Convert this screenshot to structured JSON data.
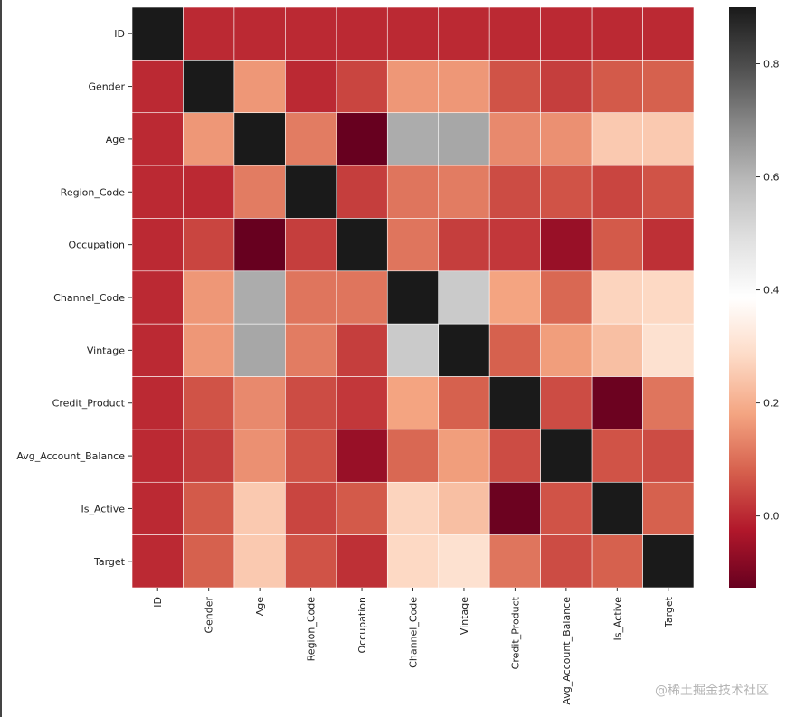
{
  "chart_data": {
    "type": "heatmap",
    "labels": [
      "ID",
      "Gender",
      "Age",
      "Region_Code",
      "Occupation",
      "Channel_Code",
      "Vintage",
      "Credit_Product",
      "Avg_Account_Balance",
      "Is_Active",
      "Target"
    ],
    "matrix": [
      [
        1.0,
        0.0,
        0.0,
        0.0,
        0.0,
        0.0,
        0.0,
        0.0,
        0.0,
        0.0,
        0.0
      ],
      [
        0.0,
        1.0,
        0.16,
        0.0,
        0.04,
        0.16,
        0.16,
        0.06,
        0.03,
        0.07,
        0.08
      ],
      [
        0.0,
        0.16,
        1.0,
        0.12,
        -0.13,
        0.62,
        0.63,
        0.14,
        0.15,
        0.25,
        0.25
      ],
      [
        0.0,
        0.0,
        0.12,
        1.0,
        0.03,
        0.11,
        0.12,
        0.05,
        0.06,
        0.04,
        0.06
      ],
      [
        0.0,
        0.04,
        -0.13,
        0.03,
        1.0,
        0.11,
        0.03,
        0.02,
        -0.06,
        0.07,
        0.01
      ],
      [
        0.0,
        0.16,
        0.62,
        0.11,
        0.11,
        1.0,
        0.55,
        0.18,
        0.09,
        0.27,
        0.28
      ],
      [
        0.0,
        0.16,
        0.63,
        0.12,
        0.03,
        0.55,
        1.0,
        0.08,
        0.17,
        0.23,
        0.3
      ],
      [
        0.0,
        0.06,
        0.14,
        0.05,
        0.02,
        0.18,
        0.08,
        1.0,
        0.05,
        -0.12,
        0.11
      ],
      [
        0.0,
        0.03,
        0.15,
        0.06,
        -0.06,
        0.09,
        0.17,
        0.05,
        1.0,
        0.06,
        0.05
      ],
      [
        0.0,
        0.07,
        0.25,
        0.04,
        0.07,
        0.27,
        0.23,
        -0.12,
        0.06,
        1.0,
        0.08
      ],
      [
        0.0,
        0.08,
        0.25,
        0.06,
        0.01,
        0.28,
        0.3,
        0.11,
        0.05,
        0.08,
        1.0
      ]
    ],
    "colormap": "RdGy_r",
    "colors": [
      "#67001f",
      "#b2182b",
      "#d6604d",
      "#f4a582",
      "#fddbc7",
      "#ffffff",
      "#e0e0e0",
      "#bababa",
      "#878787",
      "#4d4d4d",
      "#1a1a1a"
    ],
    "vmin": -0.127,
    "vmax": 0.9,
    "colorbar_ticks": [
      0.0,
      0.2,
      0.4,
      0.6,
      0.8
    ],
    "colorbar_tick_labels": [
      "0.0",
      "0.2",
      "0.4",
      "0.6",
      "0.8"
    ],
    "grid_lines_color": "#ffffff"
  },
  "watermark": "@稀土掘金技术社区"
}
